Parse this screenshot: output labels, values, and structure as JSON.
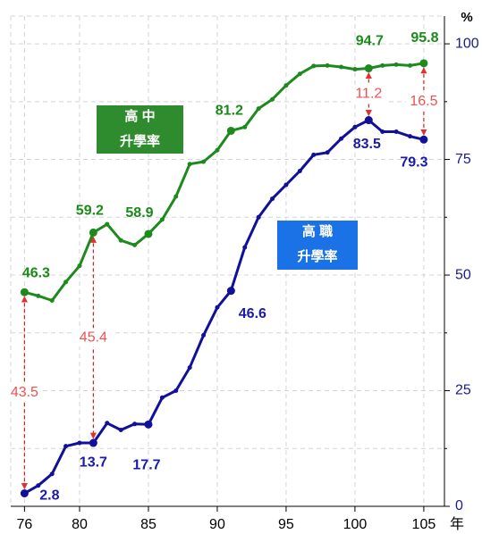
{
  "chart_data": {
    "type": "line",
    "y_unit": "%",
    "x_label": "年",
    "x": [
      76,
      77,
      78,
      79,
      80,
      81,
      82,
      83,
      84,
      85,
      86,
      87,
      88,
      89,
      90,
      91,
      92,
      93,
      94,
      95,
      96,
      97,
      98,
      99,
      100,
      101,
      102,
      103,
      104,
      105
    ],
    "xlim": [
      75,
      106.5
    ],
    "xticks": [
      76,
      80,
      85,
      90,
      95,
      100,
      105
    ],
    "ylim": [
      0,
      106
    ],
    "yticks": [
      0,
      25,
      50,
      75,
      100
    ],
    "minor_yticks": [
      12.5,
      37.5,
      62.5,
      87.5
    ],
    "grid": true,
    "series": [
      {
        "legend_lines": [
          "高 中",
          "升學率"
        ],
        "color": "#1e8a1e",
        "box_color": "#2e8b2e",
        "label_color": "#1a8a1a",
        "values": [
          46.3,
          45.5,
          44.5,
          48.5,
          52,
          59.2,
          61,
          57.5,
          56.5,
          58.9,
          62,
          67,
          74,
          74.5,
          77,
          81.2,
          82,
          86,
          88,
          91,
          93.5,
          95.2,
          95.3,
          95,
          94.5,
          94.7,
          95.3,
          95.5,
          95.3,
          95.8
        ],
        "value_labels": [
          "46.3",
          null,
          null,
          null,
          null,
          "59.2",
          null,
          null,
          null,
          "58.9",
          null,
          null,
          null,
          null,
          null,
          "81.2",
          null,
          null,
          null,
          null,
          null,
          null,
          null,
          null,
          null,
          "94.7",
          null,
          null,
          null,
          "95.8"
        ]
      },
      {
        "legend_lines": [
          "高 職",
          "升學率"
        ],
        "color": "#10109a",
        "box_color": "#1a72e6",
        "label_color": "#1a1aaa",
        "values": [
          2.8,
          4.5,
          7,
          13,
          13.7,
          13.7,
          18,
          16.5,
          17.8,
          17.7,
          23.5,
          25,
          30,
          37,
          43,
          46.6,
          56,
          62.5,
          66.5,
          69.5,
          72.5,
          76,
          76.5,
          79.5,
          82,
          83.5,
          81,
          81,
          80,
          79.3
        ],
        "value_labels": [
          "2.8",
          null,
          null,
          null,
          null,
          "13.7",
          null,
          null,
          null,
          "17.7",
          null,
          null,
          null,
          null,
          null,
          "46.6",
          null,
          null,
          null,
          null,
          null,
          null,
          null,
          null,
          null,
          "83.5",
          null,
          null,
          null,
          "79.3"
        ]
      }
    ],
    "gap_annotations": [
      {
        "x": 76,
        "value": 43.5
      },
      {
        "x": 81,
        "value": 45.4
      },
      {
        "x": 101,
        "value": 11.2
      },
      {
        "x": 105,
        "value": 16.5
      }
    ],
    "annotation_color": "#f05050"
  }
}
